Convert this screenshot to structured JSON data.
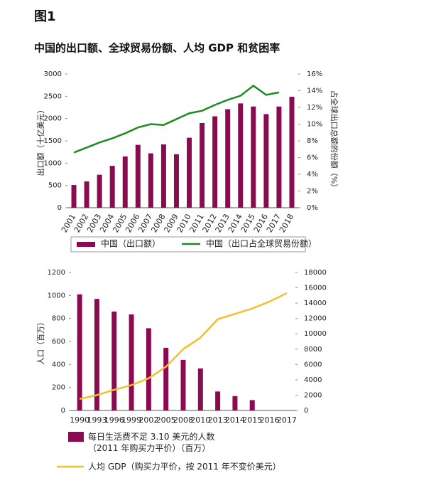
{
  "header": {
    "label": "图1",
    "title": "中国的出口额、全球贸易份额、人均 GDP 和贫困率"
  },
  "chart_data": [
    {
      "type": "bar",
      "y_label": "出口额（十亿美元）",
      "y2_label": "占全球出口总额的份额（%）",
      "categories": [
        "2001",
        "2002",
        "2003",
        "2004",
        "2005",
        "2006",
        "2007",
        "2008",
        "2009",
        "2010",
        "2011",
        "2012",
        "2013",
        "2014",
        "2015",
        "2016",
        "2017",
        "2018"
      ],
      "series": [
        {
          "name": "中国（出口额）",
          "color": "#8b0a50",
          "kind": "bar",
          "values": [
            510,
            590,
            740,
            940,
            1150,
            1410,
            1220,
            1420,
            1200,
            1570,
            1900,
            2050,
            2210,
            2340,
            2270,
            2100,
            2270,
            2490
          ]
        },
        {
          "name": "中国（出口占全球贸易份额）",
          "color": "#1e8c1e",
          "kind": "line",
          "axis": "y2",
          "values": [
            6.6,
            7.2,
            7.8,
            8.3,
            8.9,
            9.6,
            10.0,
            9.9,
            10.6,
            11.3,
            11.6,
            12.3,
            12.9,
            13.4,
            14.6,
            13.5,
            13.8,
            null
          ]
        }
      ],
      "ylim": [
        0,
        3000
      ],
      "yticks": [
        0,
        500,
        1000,
        1500,
        2000,
        2500,
        3000
      ],
      "y2lim": [
        0,
        16
      ],
      "y2ticks": [
        {
          "value": 0,
          "label": "0%"
        },
        {
          "value": 2,
          "label": "2%"
        },
        {
          "value": 4,
          "label": "4%"
        },
        {
          "value": 6,
          "label": "6%"
        },
        {
          "value": 8,
          "label": "8%"
        },
        {
          "value": 10,
          "label": "10%"
        },
        {
          "value": 12,
          "label": "12%"
        },
        {
          "value": 14,
          "label": "14%"
        },
        {
          "value": 16,
          "label": "16%"
        }
      ],
      "legend": "bottom",
      "legend_box": true
    },
    {
      "type": "bar",
      "y_label": "人口（百万）",
      "categories": [
        "1990",
        "1993",
        "1996",
        "1999",
        "2002",
        "2005",
        "2008",
        "2010",
        "2013",
        "2014",
        "2015",
        "2016",
        "2017"
      ],
      "series": [
        {
          "name": "每日生活费不足 3.10 美元的人数\n（2011 年购买力平价）（百万）",
          "color": "#8b0a50",
          "kind": "bar",
          "values": [
            1010,
            970,
            860,
            835,
            715,
            545,
            440,
            365,
            165,
            125,
            90,
            null,
            null
          ]
        },
        {
          "name": "人均 GDP（购买力平价，按 2011 年不变价美元）",
          "color": "#f5c02c",
          "kind": "line",
          "axis": "y2",
          "values": [
            1500,
            2000,
            2700,
            3300,
            4200,
            5700,
            8000,
            9500,
            11900,
            12600,
            13300,
            14200,
            15300
          ]
        }
      ],
      "ylim": [
        0,
        1200
      ],
      "yticks": [
        0,
        200,
        400,
        600,
        800,
        1000,
        1200
      ],
      "y2lim": [
        0,
        18000
      ],
      "y2ticks": [
        0,
        2000,
        4000,
        6000,
        8000,
        10000,
        12000,
        14000,
        16000,
        18000
      ],
      "legend": "bottom",
      "legend_box": false
    }
  ]
}
